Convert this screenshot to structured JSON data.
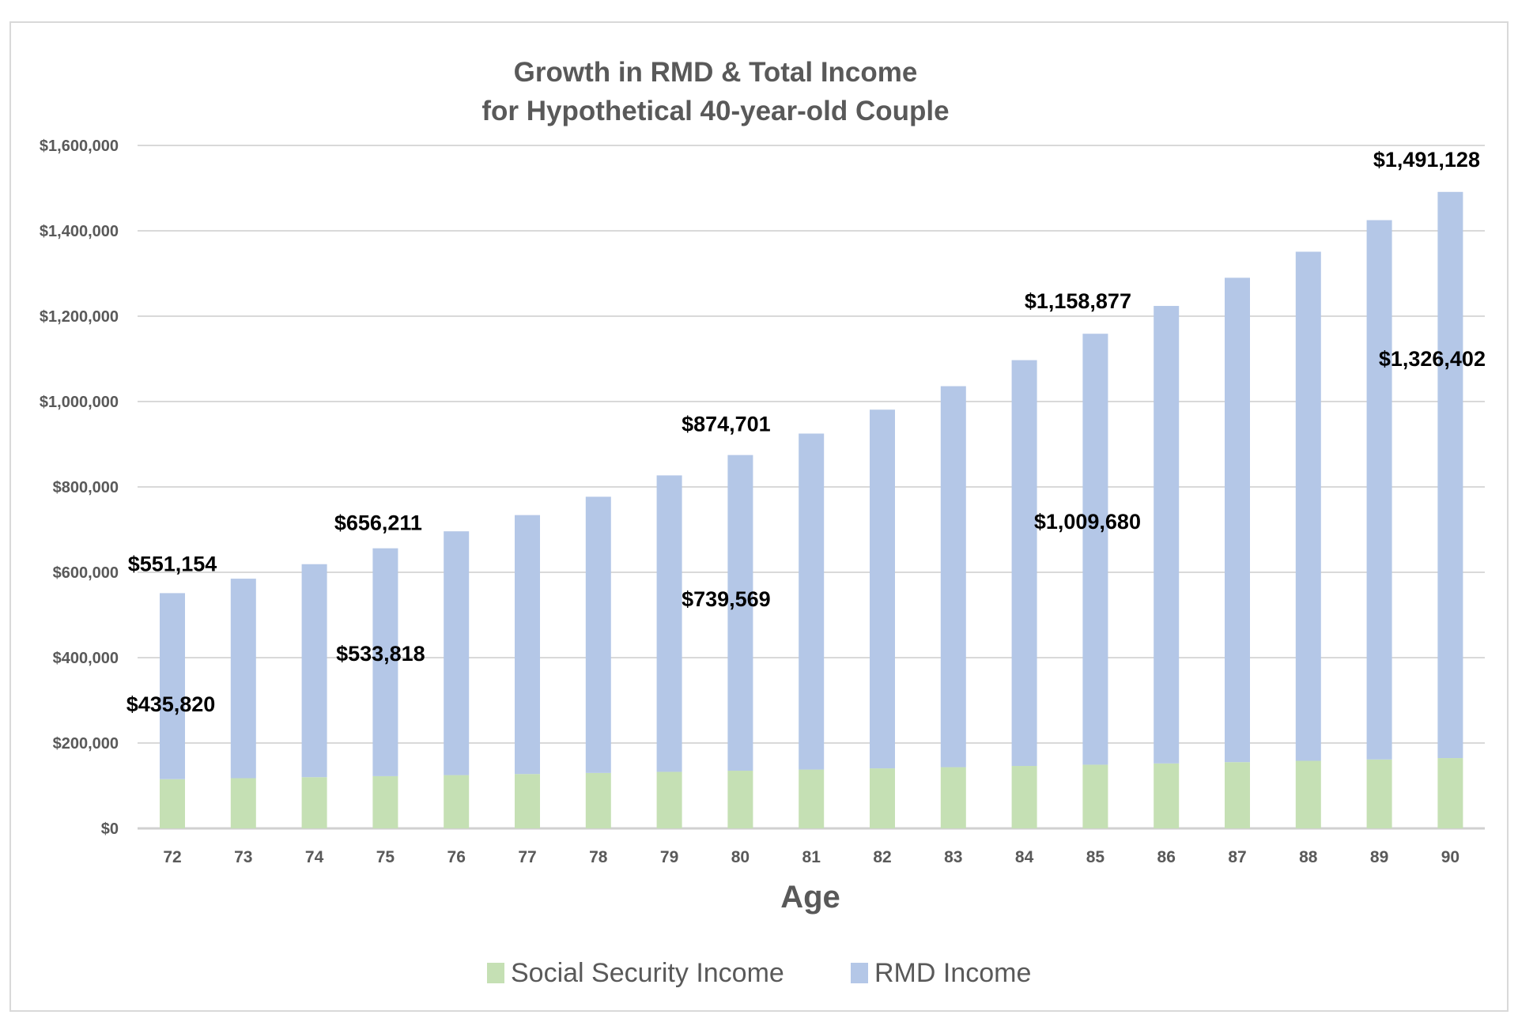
{
  "chart_data": {
    "type": "bar",
    "stacked": true,
    "title": "Growth in RMD & Total Income",
    "subtitle": "for Hypothetical 40-year-old Couple",
    "xlabel": "Age",
    "ylabel": "",
    "ylim": [
      0,
      1600000
    ],
    "yticks": [
      "$0",
      "$200,000",
      "$400,000",
      "$600,000",
      "$800,000",
      "$1,000,000",
      "$1,200,000",
      "$1,400,000",
      "$1,600,000"
    ],
    "grid": true,
    "legend_position": "bottom",
    "categories": [
      "72",
      "73",
      "74",
      "75",
      "76",
      "77",
      "78",
      "79",
      "80",
      "81",
      "82",
      "83",
      "84",
      "85",
      "86",
      "87",
      "88",
      "89",
      "90"
    ],
    "series": [
      {
        "name": "Social Security Income",
        "color": "#c5e0b4",
        "values": [
          115334,
          117641,
          119994,
          122393,
          124841,
          127338,
          129885,
          132483,
          135132,
          137835,
          140591,
          143403,
          146271,
          149197,
          152181,
          155224,
          158329,
          161495,
          164726
        ]
      },
      {
        "name": "RMD Income",
        "color": "#b4c7e7",
        "values": [
          435820,
          467359,
          499006,
          533818,
          571159,
          606662,
          647115,
          694517,
          739569,
          787165,
          840409,
          892597,
          950729,
          1009680,
          1071819,
          1134776,
          1192671,
          1263505,
          1326402
        ]
      }
    ],
    "data_labels": {
      "totals": [
        {
          "category": "72",
          "text": "$551,154"
        },
        {
          "category": "75",
          "text": "$656,211"
        },
        {
          "category": "80",
          "text": "$874,701"
        },
        {
          "category": "85",
          "text": "$1,158,877"
        },
        {
          "category": "90",
          "text": "$1,491,128"
        }
      ],
      "rmd": [
        {
          "category": "72",
          "text": "$435,820"
        },
        {
          "category": "75",
          "text": "$533,818"
        },
        {
          "category": "80",
          "text": "$739,569"
        },
        {
          "category": "85",
          "text": "$1,009,680"
        },
        {
          "category": "90",
          "text": "$1,326,402"
        }
      ]
    }
  }
}
